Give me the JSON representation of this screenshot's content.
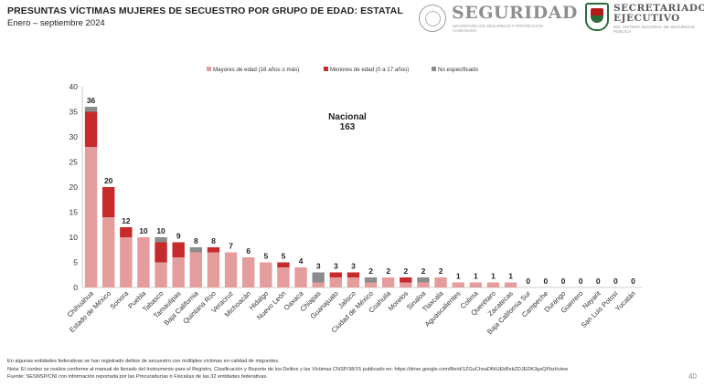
{
  "header": {
    "title": "PRESUNTAS VÍCTIMAS MUJERES DE SECUESTRO POR GRUPO DE EDAD: ESTATAL",
    "subtitle": "Enero – septiembre 2024",
    "logo_seguridad": {
      "word": "SEGURIDAD",
      "sub": "SECRETARÍA DE SEGURIDAD Y PROTECCIÓN CIUDADANA"
    },
    "logo_secretariado": {
      "word_line1": "SECRETARIADO",
      "word_line2": "EJECUTIVO",
      "sub": "DEL SISTEMA NACIONAL DE SEGURIDAD PÚBLICA"
    }
  },
  "colors": {
    "mayores": "#e59c9c",
    "menores": "#c62a2a",
    "no_especificado": "#8c8c8c"
  },
  "chart_data": {
    "type": "bar",
    "stacked": true,
    "ylim": [
      0,
      40
    ],
    "yticks": [
      0,
      5,
      10,
      15,
      20,
      25,
      30,
      35,
      40
    ],
    "legend_position": "top",
    "annotation": {
      "line1": "Nacional",
      "line2": "163"
    },
    "categories": [
      "Chihuahua",
      "Estado de México",
      "Sonora",
      "Puebla",
      "Tabasco",
      "Tamaulipas",
      "Baja California",
      "Quintana Roo",
      "Veracruz",
      "Michoacán",
      "Hidalgo",
      "Nuevo León",
      "Oaxaca",
      "Chiapas",
      "Guanajuato",
      "Jalisco",
      "Ciudad de México",
      "Coahuila",
      "Morelos",
      "Sinaloa",
      "Tlaxcala",
      "Aguascalientes",
      "Colima",
      "Querétaro",
      "Zacatecas",
      "Baja California Sur",
      "Campeche",
      "Durango",
      "Guerrero",
      "Nayarit",
      "San Luis Potosí",
      "Yucatán"
    ],
    "totals": [
      36,
      20,
      12,
      10,
      10,
      9,
      8,
      8,
      7,
      6,
      5,
      5,
      4,
      3,
      3,
      3,
      2,
      2,
      2,
      2,
      2,
      1,
      1,
      1,
      1,
      0,
      0,
      0,
      0,
      0,
      0,
      0
    ],
    "series": [
      {
        "name": "Mayores de edad (18 años o más)",
        "values": [
          28,
          14,
          10,
          10,
          5,
          6,
          7,
          7,
          7,
          6,
          5,
          4,
          4,
          1,
          2,
          2,
          1,
          2,
          1,
          1,
          2,
          1,
          1,
          1,
          1,
          0,
          0,
          0,
          0,
          0,
          0,
          0
        ]
      },
      {
        "name": "Menores de edad (0 a 17 años)",
        "values": [
          7,
          6,
          2,
          0,
          4,
          3,
          0,
          1,
          0,
          0,
          0,
          1,
          0,
          0,
          1,
          1,
          0,
          0,
          1,
          0,
          0,
          0,
          0,
          0,
          0,
          0,
          0,
          0,
          0,
          0,
          0,
          0
        ]
      },
      {
        "name": "No especificado",
        "values": [
          1,
          0,
          0,
          0,
          1,
          0,
          1,
          0,
          0,
          0,
          0,
          0,
          0,
          2,
          0,
          0,
          1,
          0,
          0,
          1,
          0,
          0,
          0,
          0,
          0,
          0,
          0,
          0,
          0,
          0,
          0,
          0
        ]
      }
    ]
  },
  "notes": {
    "line1": "En algunas entidades federativas se han registrado delitos de secuestro con múltiples víctimas en calidad de migrantes.",
    "line2": "Nota: El conteo se realiza conforme al manual de llenado del Instrumento para el Registro, Clasificación y Reporte de los Delitos y las Víctimas CNSP/38/15 publicado en: https://drive.google.com/file/d/1ZGuChsaDfHUEkBskZDJEDK3gxQFbzt/view",
    "line3": "Fuente: SESNSP/CNI con información reportada por las Procuradurías o Fiscalías de las 32 entidades federativas."
  },
  "page_number": "40"
}
